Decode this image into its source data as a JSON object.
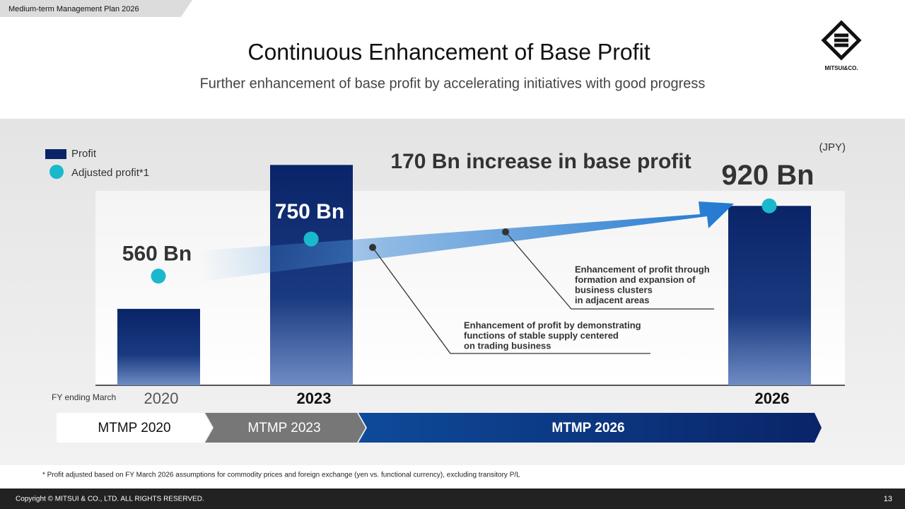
{
  "header": {
    "tag": "Medium-term Management Plan 2026",
    "title": "Continuous Enhancement of Base Profit",
    "subtitle": "Further enhancement of base profit by accelerating initiatives with good progress",
    "logo": "MITSUI&CO."
  },
  "chart_data": {
    "type": "bar",
    "categories": [
      "2020",
      "2023",
      "2026"
    ],
    "x_label": "FY ending March",
    "unit": "(JPY)",
    "ylim": [
      0,
      1200
    ],
    "series": [
      {
        "name": "Profit",
        "color": "#0a2468",
        "values": [
          392,
          1130,
          920
        ]
      },
      {
        "name": "Adjusted profit*1",
        "type": "scatter",
        "color": "#1ab8cc",
        "values": [
          560,
          750,
          920
        ],
        "value_labels": [
          "560 Bn",
          "750 Bn",
          "920 Bn"
        ]
      }
    ],
    "annotations": {
      "headline": "170 Bn increase in base profit",
      "callouts": [
        [
          "Enhancement of profit through",
          "formation and expansion of",
          "business clusters",
          "in adjacent areas"
        ],
        [
          "Enhancement of profit by demonstrating",
          "functions of stable supply centered",
          "on trading business"
        ]
      ]
    },
    "periods": [
      "MTMP 2020",
      "MTMP 2023",
      "MTMP 2026"
    ]
  },
  "footnote": "* Profit adjusted based on FY March 2026 assumptions for commodity prices and foreign exchange (yen vs. functional currency), excluding transitory P/L",
  "footer": {
    "copyright": "Copyright © MITSUI & CO., LTD. ALL RIGHTS RESERVED.",
    "page": "13"
  }
}
